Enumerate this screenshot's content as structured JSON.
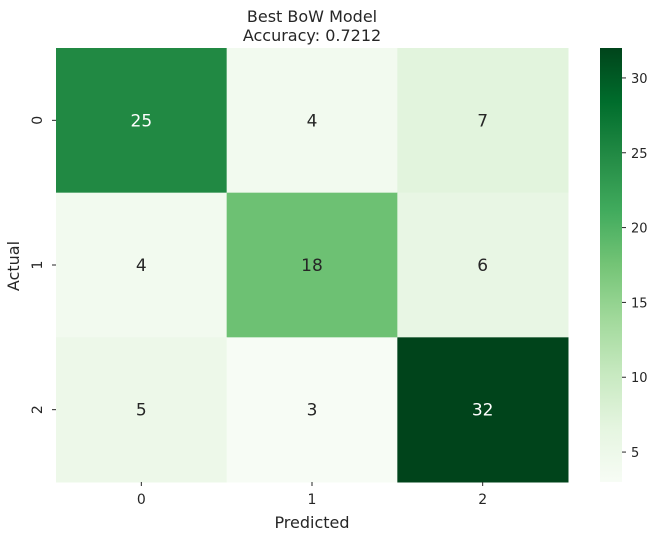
{
  "chart_data": {
    "type": "heatmap",
    "title": "Best BoW Model",
    "subtitle": "Accuracy: 0.7212",
    "xlabel": "Predicted",
    "ylabel": "Actual",
    "x_categories": [
      "0",
      "1",
      "2"
    ],
    "y_categories": [
      "0",
      "1",
      "2"
    ],
    "values": [
      [
        25,
        4,
        7
      ],
      [
        4,
        18,
        6
      ],
      [
        5,
        3,
        32
      ]
    ],
    "colorbar": {
      "range": [
        3,
        32
      ],
      "ticks": [
        "5",
        "10",
        "15",
        "20",
        "25",
        "30"
      ],
      "colormap": "Greens"
    },
    "grid": false,
    "legend": "colorbar-right"
  }
}
